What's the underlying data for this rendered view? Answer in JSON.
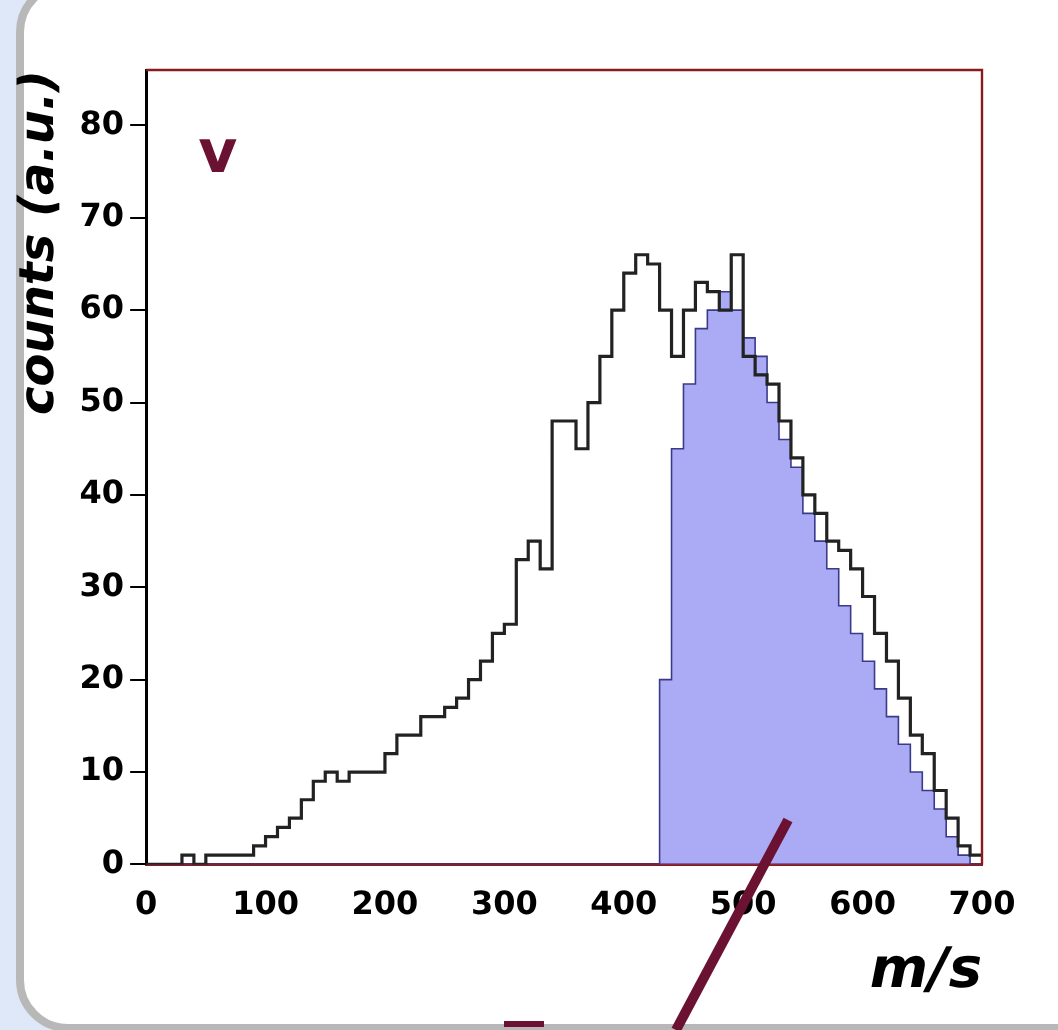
{
  "chart_data": {
    "type": "histogram",
    "xlabel": "m/s",
    "ylabel": "counts (a.u.)",
    "annotations": [
      "v"
    ],
    "bins": [
      0,
      10,
      20,
      30,
      40,
      50,
      60,
      70,
      80,
      90,
      100,
      110,
      120,
      130,
      140,
      150,
      160,
      170,
      180,
      190,
      200,
      210,
      220,
      230,
      240,
      250,
      260,
      270,
      280,
      290,
      300,
      310,
      320,
      330,
      340,
      350,
      360,
      370,
      380,
      390,
      400,
      410,
      420,
      430,
      440,
      450,
      460,
      470,
      480,
      490,
      500,
      510,
      520,
      530,
      540,
      550,
      560,
      570,
      580,
      590,
      600,
      610,
      620,
      630,
      640,
      650,
      660,
      670,
      680,
      690,
      700
    ],
    "series": [
      {
        "color": "#222222",
        "values": [
          0,
          0,
          0,
          1,
          0,
          1,
          1,
          1,
          1,
          2,
          3,
          4,
          5,
          7,
          9,
          10,
          9,
          10,
          10,
          10,
          12,
          14,
          14,
          16,
          16,
          17,
          18,
          20,
          22,
          25,
          26,
          33,
          35,
          32,
          48,
          48,
          45,
          50,
          55,
          60,
          64,
          66,
          65,
          60,
          55,
          60,
          63,
          62,
          60,
          66,
          55,
          53,
          52,
          48,
          44,
          40,
          38,
          35,
          34,
          32,
          29,
          25,
          22,
          18,
          14,
          12,
          8,
          5,
          2,
          1
        ]
      },
      {
        "color": "#8080f0",
        "values": [
          0,
          0,
          0,
          0,
          0,
          0,
          0,
          0,
          0,
          0,
          0,
          0,
          0,
          0,
          0,
          0,
          0,
          0,
          0,
          0,
          0,
          0,
          0,
          0,
          0,
          0,
          0,
          0,
          0,
          0,
          0,
          0,
          0,
          0,
          0,
          0,
          0,
          0,
          0,
          0,
          0,
          0,
          0,
          20,
          45,
          52,
          58,
          60,
          62,
          60,
          57,
          55,
          50,
          46,
          43,
          38,
          35,
          32,
          28,
          25,
          22,
          19,
          16,
          13,
          10,
          8,
          6,
          3,
          1,
          0
        ]
      }
    ],
    "xlim": [
      0,
      700
    ],
    "xticks": [
      0,
      100,
      200,
      300,
      400,
      500,
      600,
      700
    ],
    "ylim": [
      0,
      86
    ],
    "yticks": [
      0,
      10,
      20,
      30,
      40,
      50,
      60,
      70,
      80
    ],
    "grid": false,
    "legend": false
  }
}
